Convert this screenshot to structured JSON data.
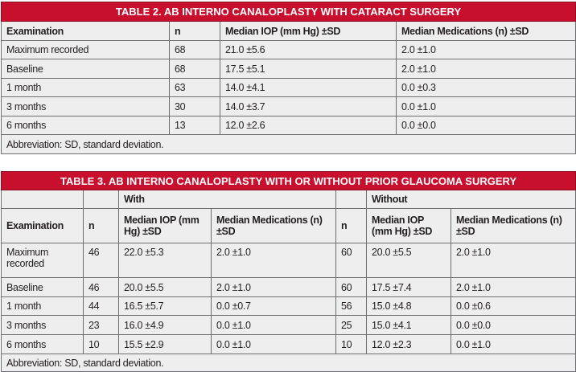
{
  "table2": {
    "title": "TABLE 2.  AB INTERNO CANALOPLASTY WITH CATARACT SURGERY",
    "headers": [
      "Examination",
      "n",
      "Median IOP (mm Hg) ±SD",
      "Median Medications (n) ±SD"
    ],
    "rows": [
      [
        "Maximum recorded",
        "68",
        "21.0 ±5.6",
        "2.0 ±1.0"
      ],
      [
        "Baseline",
        "68",
        "17.5 ±5.1",
        "2.0 ±1.0"
      ],
      [
        "1 month",
        "63",
        "14.0 ±4.1",
        "0.0 ±0.3"
      ],
      [
        "3 months",
        "30",
        "14.0 ±3.7",
        "0.0 ±1.0"
      ],
      [
        "6 months",
        "13",
        "12.0 ±2.6",
        "0.0 ±0.0"
      ]
    ],
    "footnote": "Abbreviation: SD, standard deviation."
  },
  "table3": {
    "title": "TABLE 3.  AB INTERNO CANALOPLASTY WITH OR WITHOUT PRIOR GLAUCOMA SURGERY",
    "group_with": "With",
    "group_without": "Without",
    "headers": [
      "Examination",
      "n",
      "Median IOP (mm Hg) ±SD",
      "Median Medications (n) ±SD",
      "n",
      "Median IOP (mm Hg) ±SD",
      "Median Medications (n) ±SD"
    ],
    "rows": [
      [
        "Maximum recorded",
        "46",
        "22.0 ±5.3",
        "2.0 ±1.0",
        "60",
        "20.0 ±5.5",
        "2.0 ±1.0"
      ],
      [
        "Baseline",
        "46",
        "20.0 ±5.5",
        "2.0 ±1.0",
        "60",
        "17.5 ±7.4",
        "2.0 ±1.0"
      ],
      [
        "1 month",
        "44",
        "16.5 ±5.7",
        "0.0 ±0.7",
        "56",
        "15.0 ±4.8",
        "0.0 ±0.6"
      ],
      [
        "3 months",
        "23",
        "16.0 ±4.9",
        "0.0 ±1.0",
        "25",
        "15.0 ±4.1",
        "0.0 ±0.0"
      ],
      [
        "6 months",
        "10",
        "15.5 ±2.9",
        "0.0 ±1.0",
        "10",
        "12.0 ±2.3",
        "0.0 ±1.0"
      ]
    ],
    "footnote": "Abbreviation: SD, standard deviation."
  },
  "colors": {
    "title_bar": "#c8102e",
    "table_bg": "#eeeeee",
    "border": "#6d6e71"
  }
}
